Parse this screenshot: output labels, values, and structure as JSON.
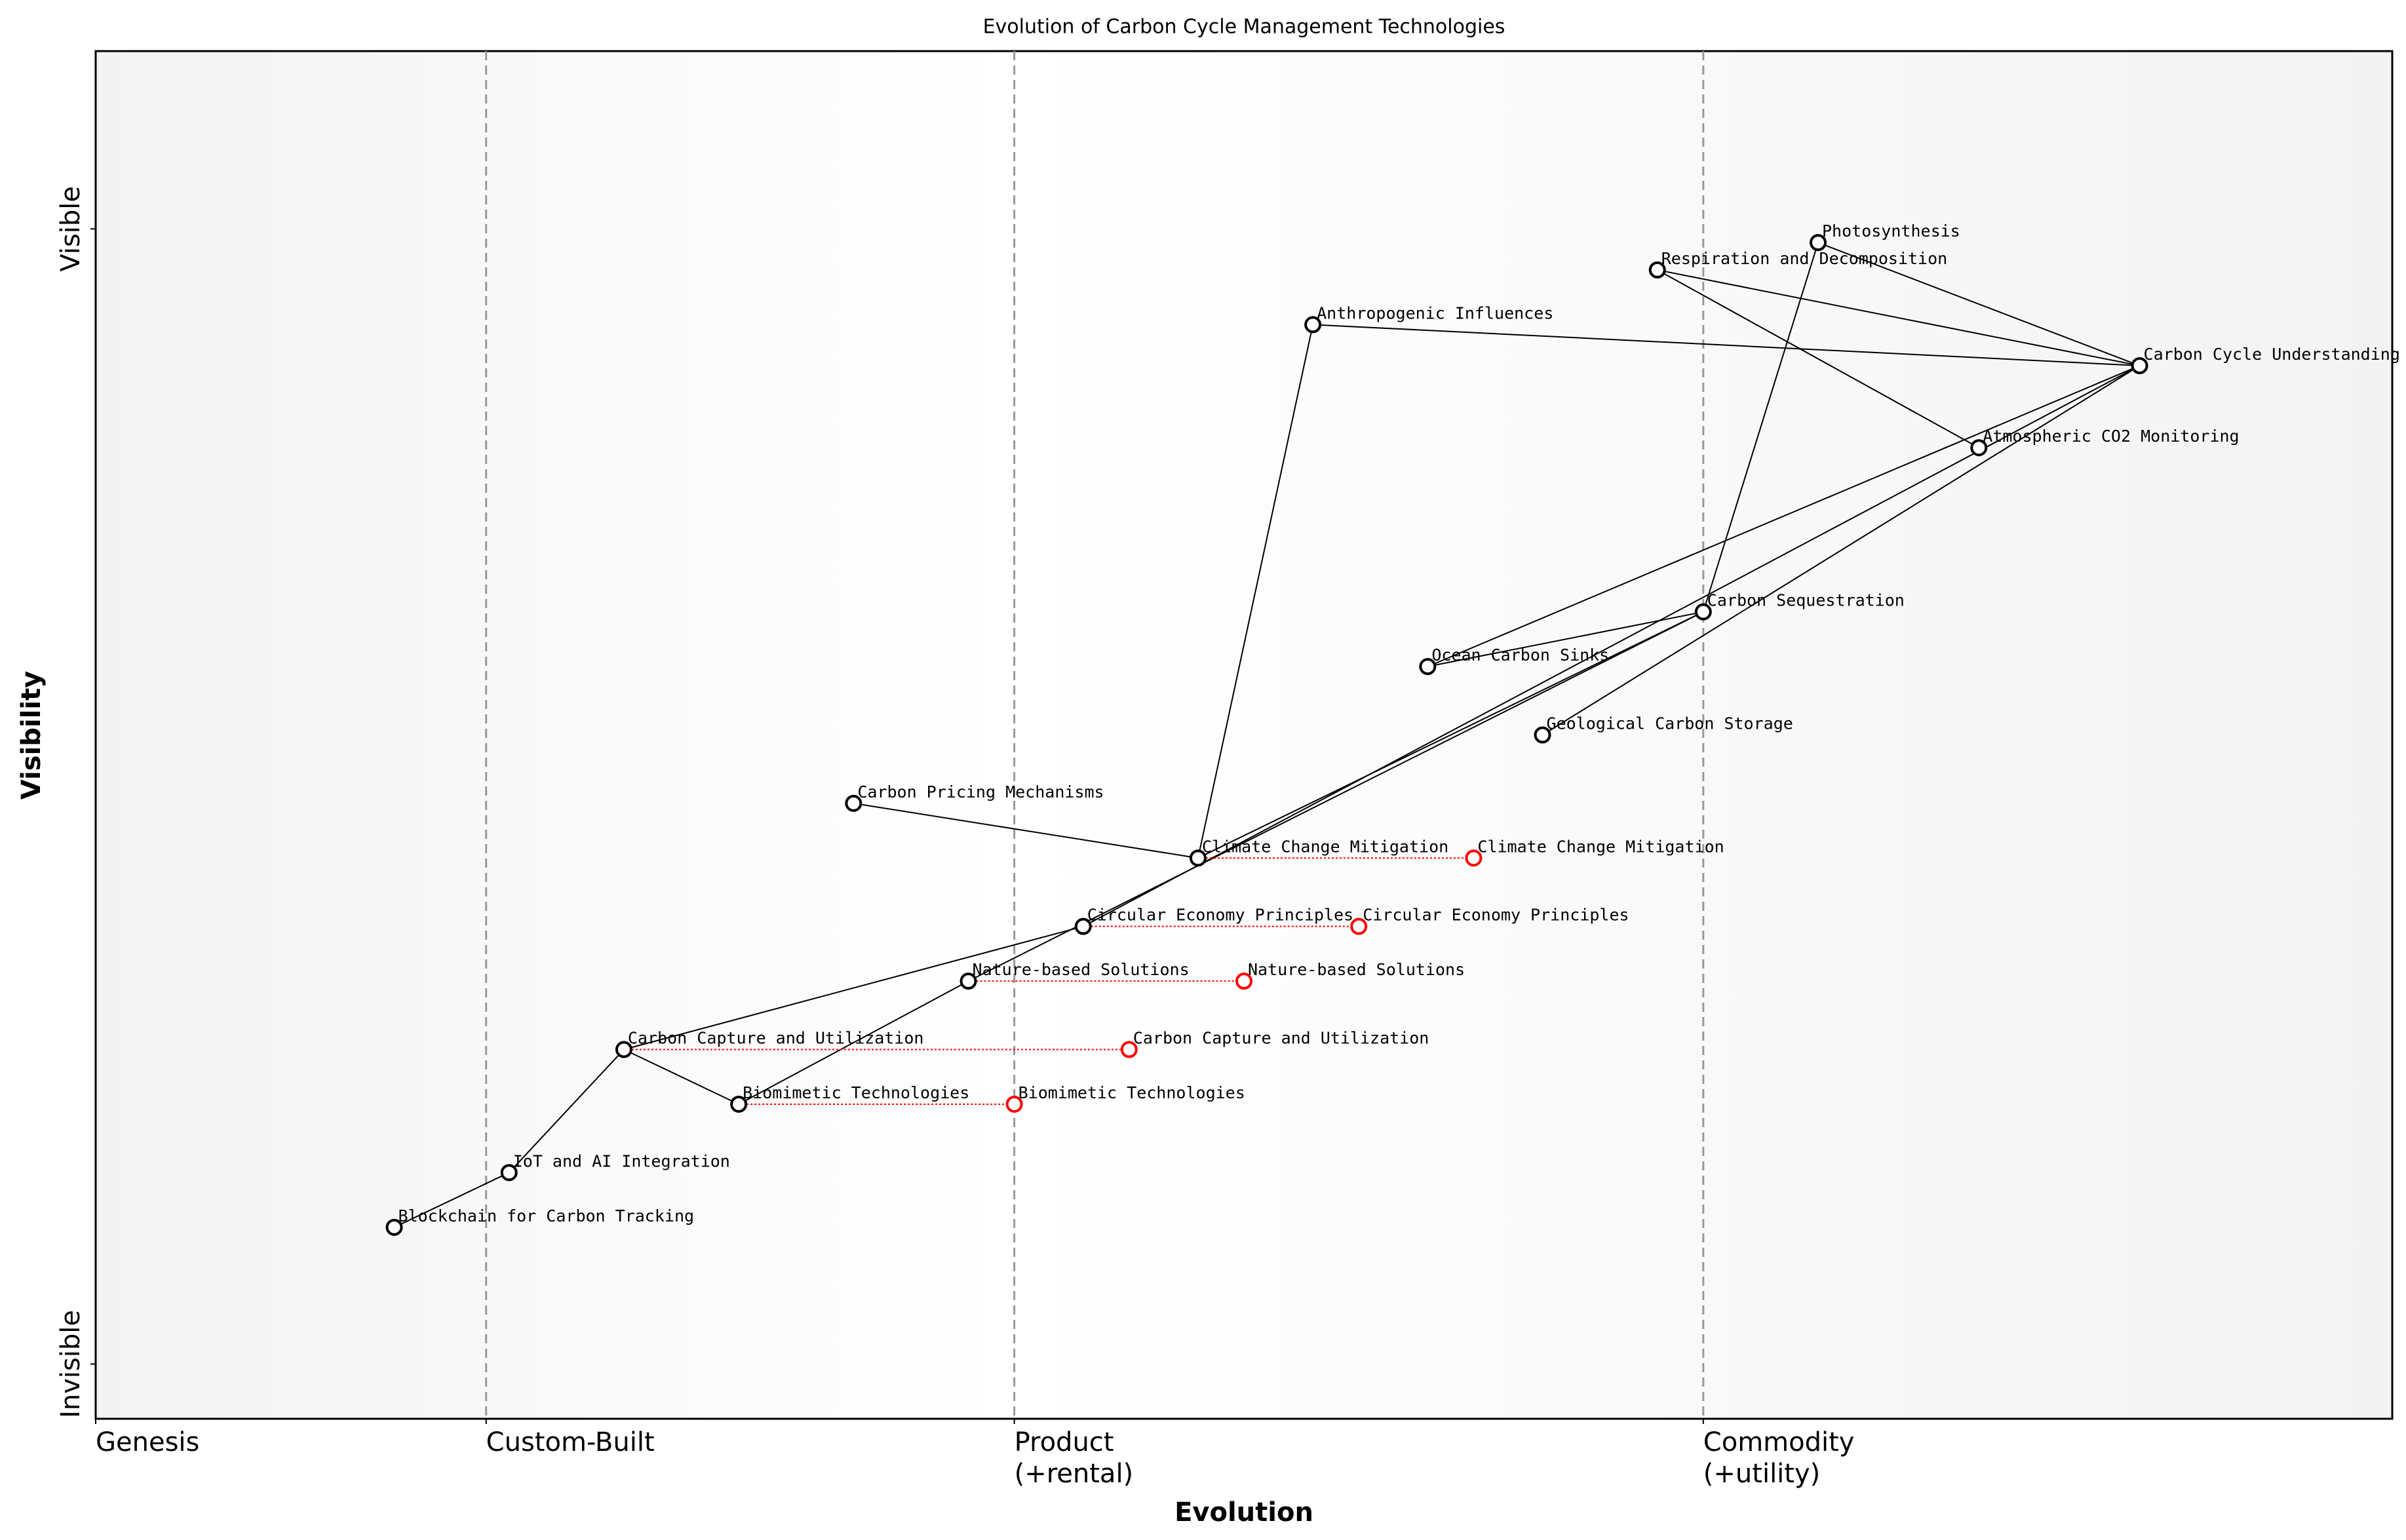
{
  "chart_data": {
    "type": "wardley",
    "title": "Evolution of Carbon Cycle Management Technologies",
    "x_label": "Evolution",
    "y_label": "Visibility",
    "xlim": [
      0,
      1
    ],
    "ylim": [
      0,
      1
    ],
    "xticks": [
      {
        "value": 0,
        "label": "Genesis"
      },
      {
        "value": 0.17,
        "label": "Custom-Built"
      },
      {
        "value": 0.4,
        "label": "Product\n(+rental)"
      },
      {
        "value": 0.7,
        "label": "Commodity\n(+utility)"
      }
    ],
    "yticks": [
      {
        "value": 0.04,
        "label": "Invisible"
      },
      {
        "value": 0.87,
        "label": "Visible"
      }
    ],
    "color": "#000000",
    "evolution_color": "#ff0000",
    "components": [
      {
        "name": "Photosynthesis",
        "x": 0.75,
        "y": 0.86
      },
      {
        "name": "Respiration and Decomposition",
        "x": 0.68,
        "y": 0.84
      },
      {
        "name": "Anthropogenic Influences",
        "x": 0.53,
        "y": 0.8
      },
      {
        "name": "Carbon Cycle Understanding",
        "x": 0.89,
        "y": 0.77
      },
      {
        "name": "Atmospheric CO2 Monitoring",
        "x": 0.82,
        "y": 0.71
      },
      {
        "name": "Carbon Sequestration",
        "x": 0.7,
        "y": 0.59
      },
      {
        "name": "Ocean Carbon Sinks",
        "x": 0.58,
        "y": 0.55
      },
      {
        "name": "Geological Carbon Storage",
        "x": 0.63,
        "y": 0.5
      },
      {
        "name": "Carbon Pricing Mechanisms",
        "x": 0.33,
        "y": 0.45
      },
      {
        "name": "Climate Change Mitigation",
        "x": 0.48,
        "y": 0.41
      },
      {
        "name": "Circular Economy Principles",
        "x": 0.43,
        "y": 0.36
      },
      {
        "name": "Nature-based Solutions",
        "x": 0.38,
        "y": 0.32
      },
      {
        "name": "Carbon Capture and Utilization",
        "x": 0.23,
        "y": 0.27
      },
      {
        "name": "Biomimetic Technologies",
        "x": 0.28,
        "y": 0.23
      },
      {
        "name": "IoT and AI Integration",
        "x": 0.18,
        "y": 0.18
      },
      {
        "name": "Blockchain for Carbon Tracking",
        "x": 0.13,
        "y": 0.14
      }
    ],
    "evolutions": [
      {
        "name": "Climate Change Mitigation",
        "x": 0.6
      },
      {
        "name": "Circular Economy Principles",
        "x": 0.55
      },
      {
        "name": "Nature-based Solutions",
        "x": 0.5
      },
      {
        "name": "Carbon Capture and Utilization",
        "x": 0.45
      },
      {
        "name": "Biomimetic Technologies",
        "x": 0.4
      }
    ],
    "links": [
      [
        "Carbon Cycle Understanding",
        "Photosynthesis"
      ],
      [
        "Carbon Cycle Understanding",
        "Respiration and Decomposition"
      ],
      [
        "Carbon Cycle Understanding",
        "Anthropogenic Influences"
      ],
      [
        "Carbon Cycle Understanding",
        "Ocean Carbon Sinks"
      ],
      [
        "Carbon Cycle Understanding",
        "Geological Carbon Storage"
      ],
      [
        "Carbon Cycle Understanding",
        "Circular Economy Principles"
      ],
      [
        "Respiration and Decomposition",
        "Atmospheric CO2 Monitoring"
      ],
      [
        "Photosynthesis",
        "Carbon Sequestration"
      ],
      [
        "Ocean Carbon Sinks",
        "Carbon Sequestration"
      ],
      [
        "Carbon Sequestration",
        "Nature-based Solutions"
      ],
      [
        "Carbon Sequestration",
        "Climate Change Mitigation"
      ],
      [
        "Anthropogenic Influences",
        "Climate Change Mitigation"
      ],
      [
        "Carbon Pricing Mechanisms",
        "Climate Change Mitigation"
      ],
      [
        "Circular Economy Principles",
        "Carbon Capture and Utilization"
      ],
      [
        "Nature-based Solutions",
        "Biomimetic Technologies"
      ],
      [
        "Carbon Capture and Utilization",
        "Biomimetic Technologies"
      ],
      [
        "Carbon Capture and Utilization",
        "IoT and AI Integration"
      ],
      [
        "IoT and AI Integration",
        "Blockchain for Carbon Tracking"
      ]
    ]
  }
}
